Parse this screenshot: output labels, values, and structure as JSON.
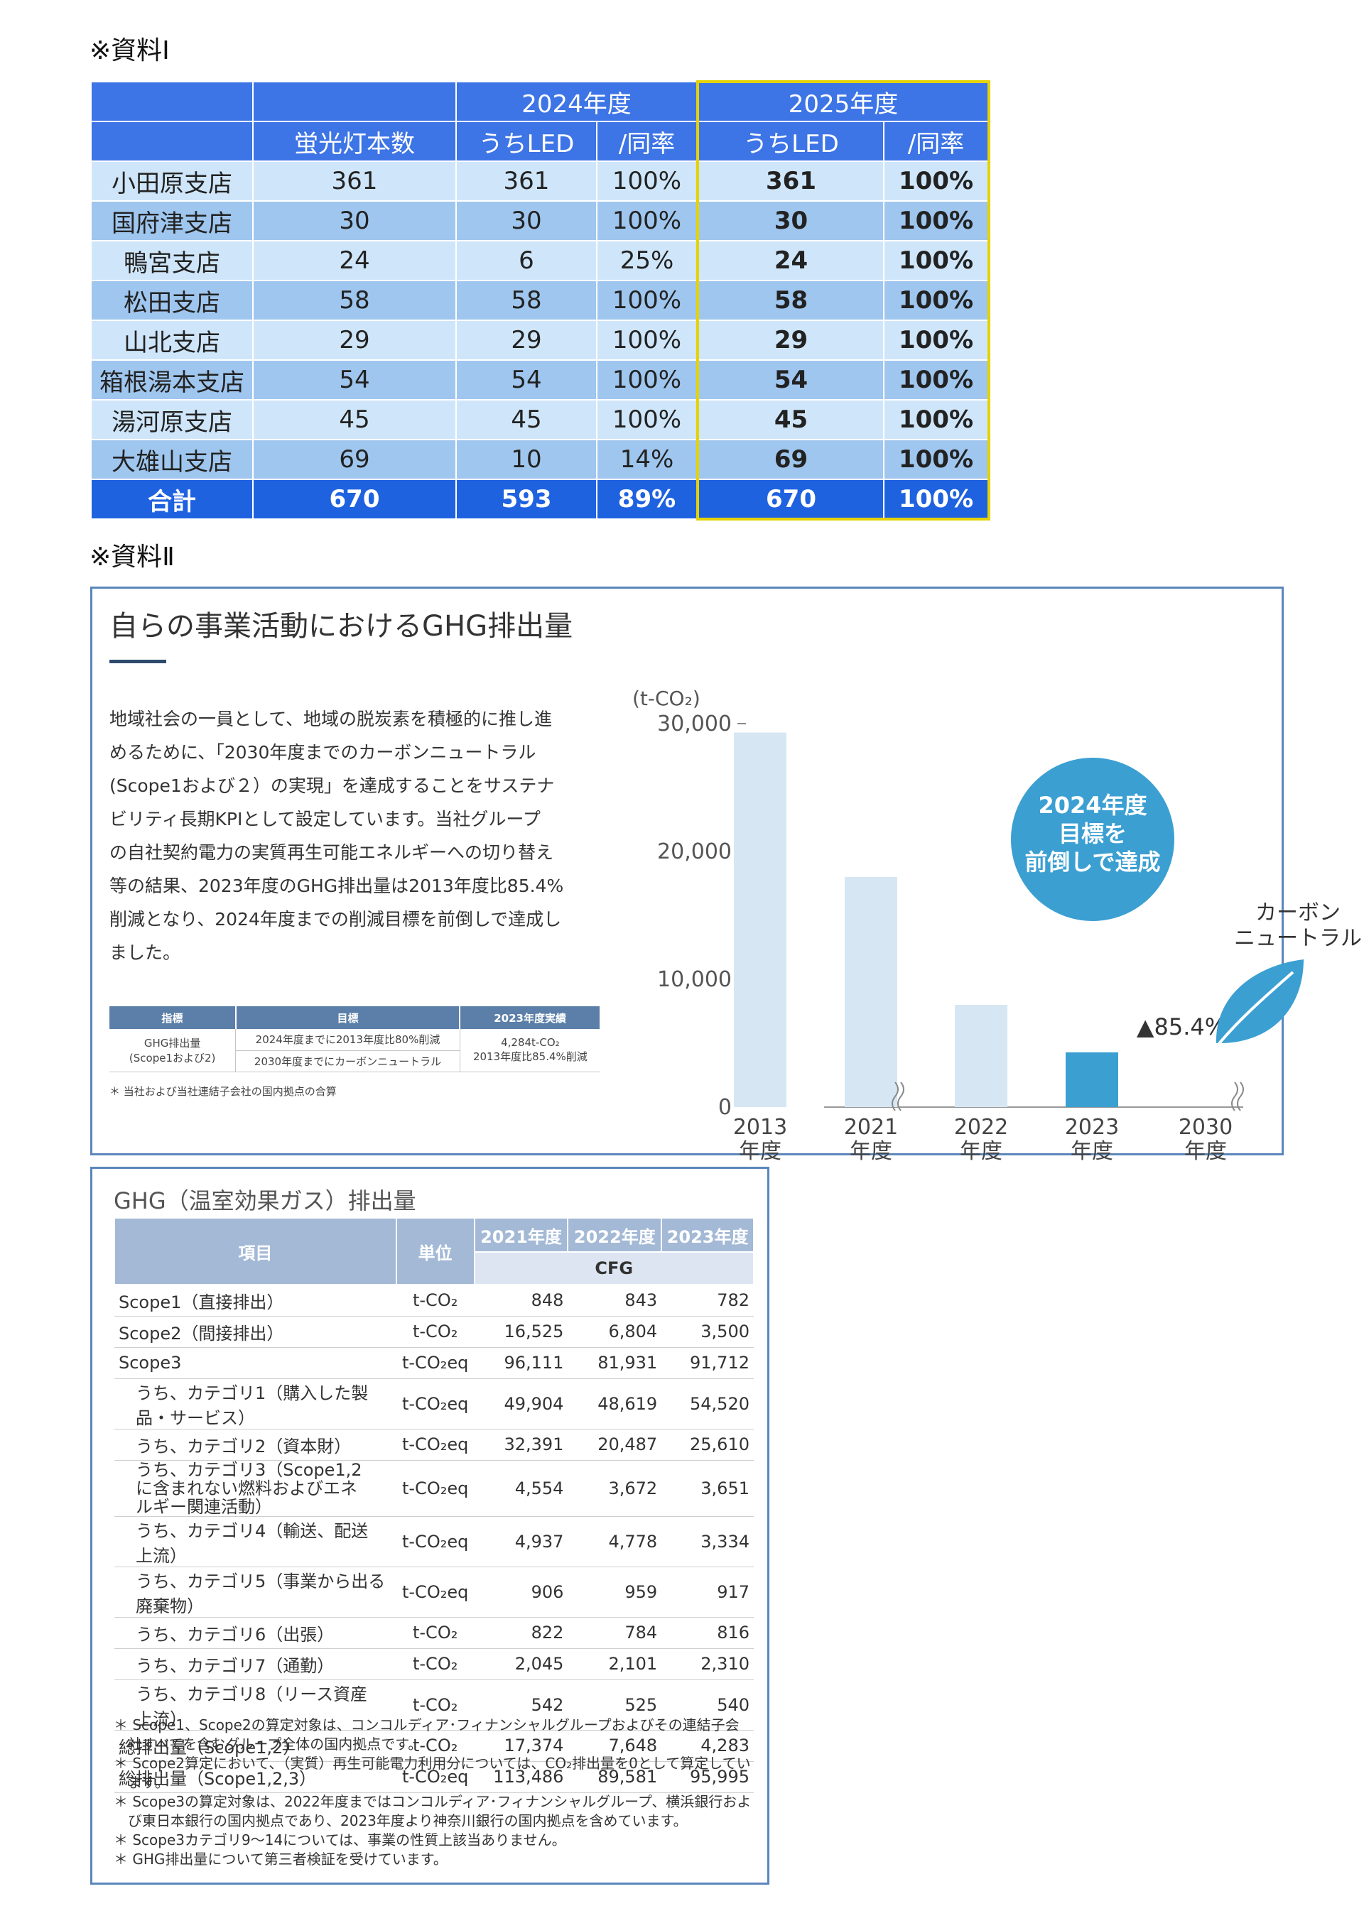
{
  "heading1": "※資料Ⅰ",
  "heading2": "※資料Ⅱ",
  "led_table": {
    "year_headers": [
      "2024年度",
      "2025年度"
    ],
    "col_headers": [
      "蛍光灯本数",
      "うちLED",
      "/同率",
      "うちLED",
      "/同率"
    ],
    "rows": [
      {
        "branch": "小田原支店",
        "count": "361",
        "led24": "361",
        "rate24": "100%",
        "led25": "361",
        "rate25": "100%"
      },
      {
        "branch": "国府津支店",
        "count": "30",
        "led24": "30",
        "rate24": "100%",
        "led25": "30",
        "rate25": "100%"
      },
      {
        "branch": "鴨宮支店",
        "count": "24",
        "led24": "6",
        "rate24": "25%",
        "led25": "24",
        "rate25": "100%"
      },
      {
        "branch": "松田支店",
        "count": "58",
        "led24": "58",
        "rate24": "100%",
        "led25": "58",
        "rate25": "100%"
      },
      {
        "branch": "山北支店",
        "count": "29",
        "led24": "29",
        "rate24": "100%",
        "led25": "29",
        "rate25": "100%"
      },
      {
        "branch": "箱根湯本支店",
        "count": "54",
        "led24": "54",
        "rate24": "100%",
        "led25": "54",
        "rate25": "100%"
      },
      {
        "branch": "湯河原支店",
        "count": "45",
        "led24": "45",
        "rate24": "100%",
        "led25": "45",
        "rate25": "100%"
      },
      {
        "branch": "大雄山支店",
        "count": "69",
        "led24": "10",
        "rate24": "14%",
        "led25": "69",
        "rate25": "100%"
      }
    ],
    "total": {
      "branch": "合計",
      "count": "670",
      "led24": "593",
      "rate24": "89%",
      "led25": "670",
      "rate25": "100%"
    }
  },
  "ghg_panel": {
    "title": "自らの事業活動におけるGHG排出量",
    "body_lines": [
      "地域社会の一員として、地域の脱炭素を積極的に推し進",
      "めるために、「2030年度までのカーボンニュートラル",
      "(Scope1および２）の実現」を達成することをサステナ",
      "ビリティ長期KPIとして設定しています。当社グループ",
      "の自社契約電力の実質再生可能エネルギーへの切り替え",
      "等の結果、2023年度のGHG排出量は2013年度比85.4%",
      "削減となり、2024年度までの削減目標を前倒しで達成し",
      "ました。"
    ],
    "kpi_table": {
      "headers": [
        "指標",
        "目標",
        "2023年度実績"
      ],
      "indicator": [
        "GHG排出量",
        "(Scope1および2)"
      ],
      "targets": [
        "2024年度までに2013年度比80%削減",
        "2030年度までにカーボンニュートラル"
      ],
      "result": [
        "4,284t-CO₂",
        "2013年度比85.4%削減"
      ]
    },
    "kpi_note": "＊ 当社および当社連結子会社の国内拠点の合算",
    "badge_lines": [
      "2024年度",
      "目標を",
      "前倒しで達成"
    ],
    "carbon_label": [
      "カーボン",
      "ニュートラル"
    ],
    "reduction_label": "▲85.4%"
  },
  "chart_data": {
    "type": "bar",
    "ylabel": "(t-CO₂)",
    "ylim": [
      0,
      30000
    ],
    "yticks": [
      "30,000",
      "20,000",
      "10,000",
      "0"
    ],
    "categories": [
      "2013 年度",
      "2021 年度",
      "2022 年度",
      "2023 年度",
      "2030 年度"
    ],
    "values": [
      29300,
      18000,
      8000,
      4284,
      0
    ],
    "colors": {
      "bar": "#d6e7f3",
      "highlight": "#3b9fd2",
      "badge": "#3b9fd2",
      "leaf": "#3b9fd2"
    }
  },
  "ghg_table": {
    "title": "GHG（温室効果ガス）排出量",
    "headers": {
      "item": "項目",
      "unit": "単位",
      "years": [
        "2021年度",
        "2022年度",
        "2023年度"
      ],
      "sub": "CFG"
    },
    "rows": [
      {
        "label": "Scope1（直接排出）",
        "unit": "t-CO₂",
        "v": [
          "848",
          "843",
          "782"
        ],
        "indent": false
      },
      {
        "label": "Scope2（間接排出）",
        "unit": "t-CO₂",
        "v": [
          "16,525",
          "6,804",
          "3,500"
        ],
        "indent": false
      },
      {
        "label": "Scope3",
        "unit": "t-CO₂eq",
        "v": [
          "96,111",
          "81,931",
          "91,712"
        ],
        "indent": false
      },
      {
        "label": "うち、カテゴリ1（購入した製品・サービス）",
        "unit": "t-CO₂eq",
        "v": [
          "49,904",
          "48,619",
          "54,520"
        ],
        "indent": true
      },
      {
        "label": "うち、カテゴリ2（資本財）",
        "unit": "t-CO₂eq",
        "v": [
          "32,391",
          "20,487",
          "25,610"
        ],
        "indent": true
      },
      {
        "label": "うち、カテゴリ3（Scope1,2に含まれない燃料およびエネルギー関連活動）",
        "unit": "t-CO₂eq",
        "v": [
          "4,554",
          "3,672",
          "3,651"
        ],
        "indent": true,
        "two": true
      },
      {
        "label": "うち、カテゴリ4（輸送、配送　上流）",
        "unit": "t-CO₂eq",
        "v": [
          "4,937",
          "4,778",
          "3,334"
        ],
        "indent": true
      },
      {
        "label": "うち、カテゴリ5（事業から出る廃棄物）",
        "unit": "t-CO₂eq",
        "v": [
          "906",
          "959",
          "917"
        ],
        "indent": true
      },
      {
        "label": "うち、カテゴリ6（出張）",
        "unit": "t-CO₂",
        "v": [
          "822",
          "784",
          "816"
        ],
        "indent": true
      },
      {
        "label": "うち、カテゴリ7（通勤）",
        "unit": "t-CO₂",
        "v": [
          "2,045",
          "2,101",
          "2,310"
        ],
        "indent": true
      },
      {
        "label": "うち、カテゴリ8（リース資産　上流）",
        "unit": "t-CO₂",
        "v": [
          "542",
          "525",
          "540"
        ],
        "indent": true
      },
      {
        "label": "総排出量（Scope1,2）",
        "unit": "t-CO₂",
        "v": [
          "17,374",
          "7,648",
          "4,283"
        ],
        "indent": false
      },
      {
        "label": "総排出量（Scope1,2,3）",
        "unit": "t-CO₂eq",
        "v": [
          "113,486",
          "89,581",
          "95,995"
        ],
        "indent": false
      }
    ],
    "notes": [
      "＊ Scope1、Scope2の算定対象は、コンコルディア･フィナンシャルグループおよびその連結子会社すべてを含むグループ全体の国内拠点です。",
      "＊ Scope2算定において、（実質）再生可能電力利用分については、CO₂排出量を0として算定しています。",
      "＊ Scope3の算定対象は、2022年度まではコンコルディア･フィナンシャルグループ、横浜銀行および東日本銀行の国内拠点であり、2023年度より神奈川銀行の国内拠点を含めています。",
      "＊ Scope3カテゴリ9～14については、事業の性質上該当ありません。",
      "＊ GHG排出量について第三者検証を受けています。"
    ]
  }
}
